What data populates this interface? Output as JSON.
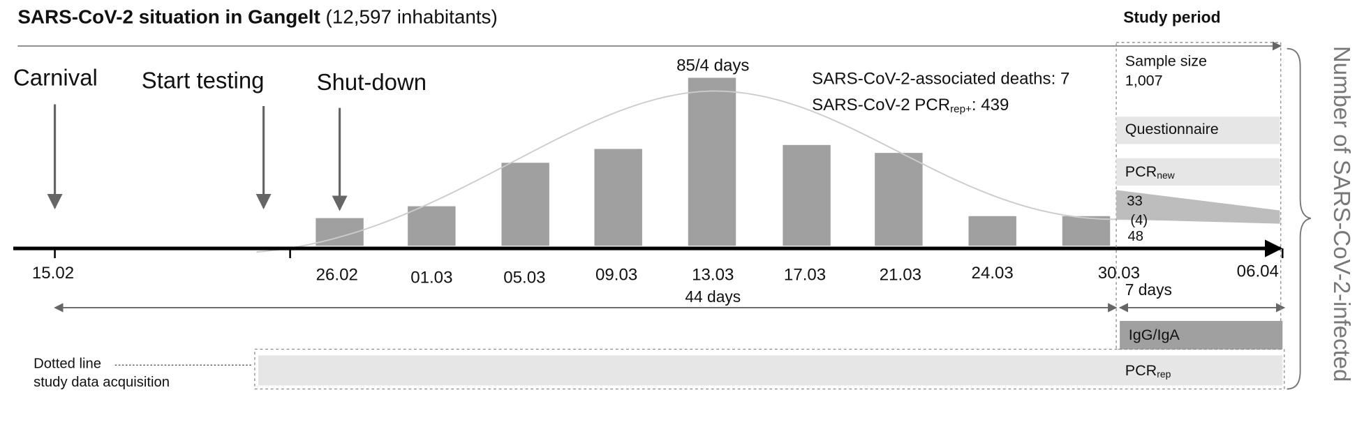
{
  "title": {
    "bold": "SARS-CoV-2 situation in Gangelt",
    "rest": "(12,597 inhabitants)"
  },
  "events": [
    "Carnival",
    "Start testing",
    "Shut-down"
  ],
  "peak_label": "85/4 days",
  "deaths": "SARS-CoV-2-associated deaths: 7",
  "pcr_positive": {
    "text": "SARS-CoV-2 PCR",
    "sub": "rep+",
    "rest": ": 439"
  },
  "dates": [
    "15.02",
    "26.02",
    "01.03",
    "05.03",
    "09.03",
    "13.03",
    "17.03",
    "21.03",
    "24.03",
    "30.03",
    "06.04"
  ],
  "bars": {
    "values": [
      14,
      20,
      42,
      49,
      85,
      51,
      47,
      15,
      15
    ]
  },
  "span_main": "44 days",
  "span_study": "7 days",
  "study_period": {
    "title": "Study period",
    "sample_size_label": "Sample size",
    "sample_size": "1,007",
    "questionnaire": "Questionnaire",
    "pcr_new": {
      "text": "PCR",
      "sub": "new"
    },
    "counts": [
      "33",
      "(4)",
      "48"
    ],
    "igg": "IgG/IgA",
    "pcr_rep": {
      "text": "PCR",
      "sub": "rep"
    }
  },
  "legend": [
    "Dotted line",
    "study data acquisition"
  ],
  "side_label": "Number of SARS-CoV-2-infected"
}
